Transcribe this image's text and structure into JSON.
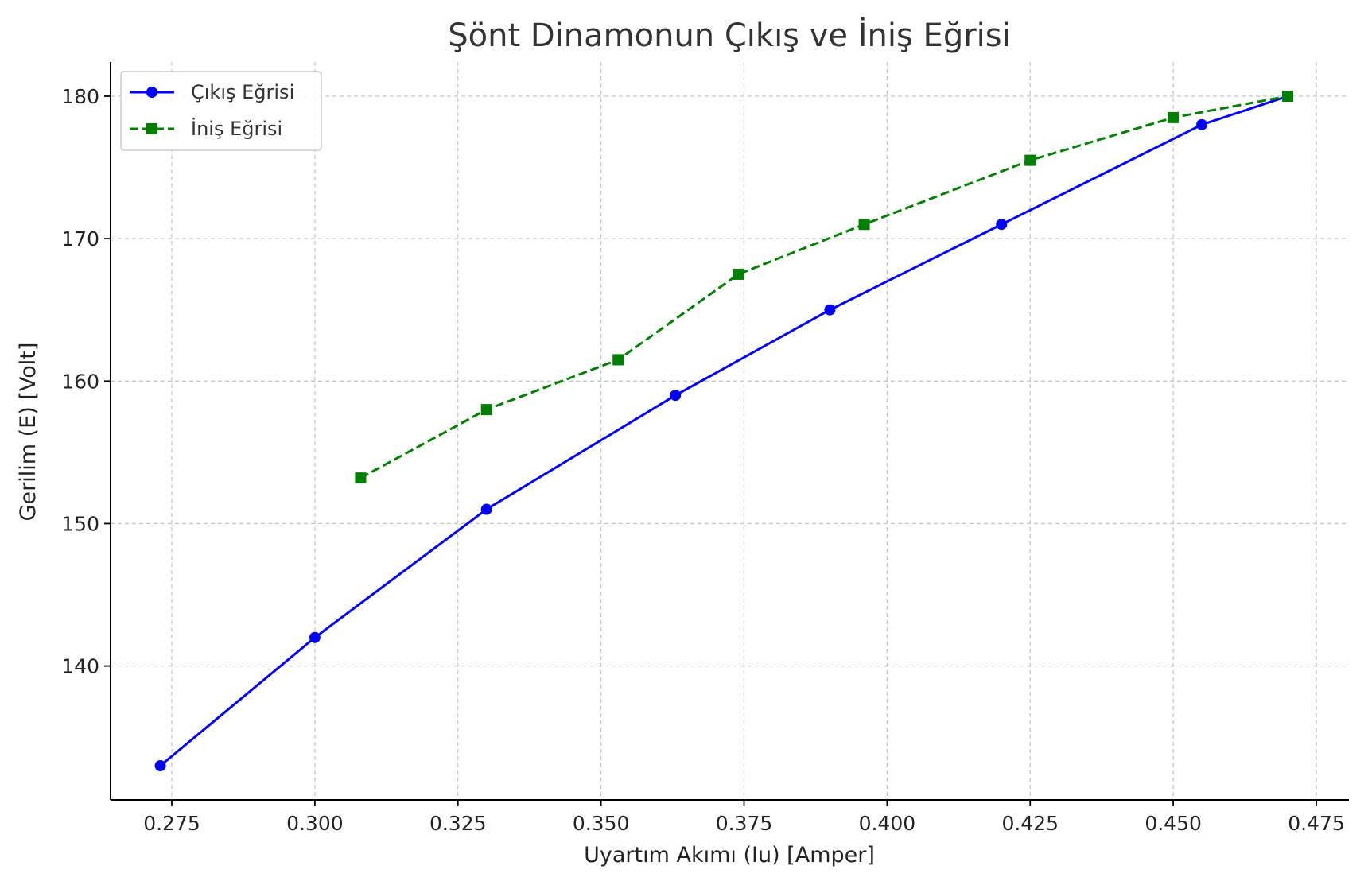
{
  "chart_data": {
    "type": "line",
    "title": "Şönt Dinamonun Çıkış ve İniş Eğrisi",
    "xlabel": "Uyartım Akımı (Iu) [Amper]",
    "ylabel": "Gerilim (E) [Volt]",
    "xlim": [
      0.2643,
      0.4807
    ],
    "ylim": [
      130.6,
      182.4
    ],
    "xticks": [
      0.275,
      0.3,
      0.325,
      0.35,
      0.375,
      0.4,
      0.425,
      0.45,
      0.475
    ],
    "xtick_labels": [
      "0.275",
      "0.300",
      "0.325",
      "0.350",
      "0.375",
      "0.400",
      "0.425",
      "0.450",
      "0.475"
    ],
    "yticks": [
      140,
      150,
      160,
      170,
      180
    ],
    "ytick_labels": [
      "140",
      "150",
      "160",
      "170",
      "180"
    ],
    "grid": true,
    "legend_position": "top-left",
    "series": [
      {
        "name": "Çıkış Eğrisi",
        "color": "#0000ff",
        "line_style": "solid",
        "marker": "circle",
        "points": [
          {
            "x": 0.273,
            "y": 133
          },
          {
            "x": 0.3,
            "y": 142
          },
          {
            "x": 0.33,
            "y": 151
          },
          {
            "x": 0.363,
            "y": 159
          },
          {
            "x": 0.39,
            "y": 165
          },
          {
            "x": 0.42,
            "y": 171
          },
          {
            "x": 0.455,
            "y": 178
          },
          {
            "x": 0.47,
            "y": 180
          }
        ]
      },
      {
        "name": "İniş Eğrisi",
        "color": "#008000",
        "line_style": "dashed",
        "marker": "square",
        "points": [
          {
            "x": 0.308,
            "y": 153.2
          },
          {
            "x": 0.33,
            "y": 158
          },
          {
            "x": 0.353,
            "y": 161.5
          },
          {
            "x": 0.374,
            "y": 167.5
          },
          {
            "x": 0.396,
            "y": 171
          },
          {
            "x": 0.425,
            "y": 175.5
          },
          {
            "x": 0.45,
            "y": 178.5
          },
          {
            "x": 0.47,
            "y": 180
          }
        ]
      }
    ]
  }
}
